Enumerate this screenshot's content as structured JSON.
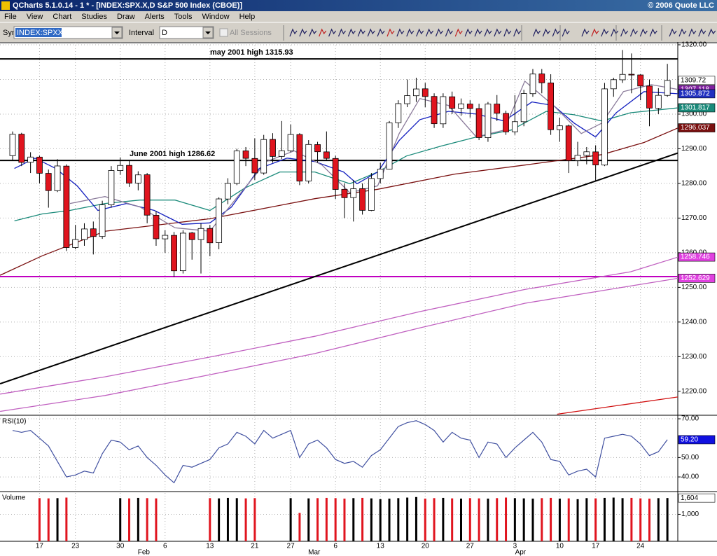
{
  "window": {
    "title": "QCharts 5.1.0.14 - 1 * - [INDEX:SPX.X,D S&P 500 Index (CBOE)]",
    "copyright": "© 2006 Quote LLC"
  },
  "menu": [
    "File",
    "View",
    "Chart",
    "Studies",
    "Draw",
    "Alerts",
    "Tools",
    "Window",
    "Help"
  ],
  "toolbar": {
    "symbol_label": "Symbol",
    "symbol": "INDEX:SPXX",
    "interval_label": "Interval",
    "interval": "D",
    "sessions": "All Sessions"
  },
  "chart_data": [
    {
      "type": "candlestick",
      "up_color": "#ffffff",
      "down_color": "#e0141e",
      "open": [
        1288.0,
        1294.2,
        1286.1,
        1287.6,
        1282.9,
        1277.9,
        1285.0,
        1261.5,
        1263.8,
        1266.9,
        1264.7,
        1273.8,
        1283.7,
        1285.2,
        1280.1,
        1282.5,
        1270.8,
        1264.0,
        1265.0,
        1254.8,
        1265.7,
        1263.8,
        1267.0,
        1262.9,
        1275.5,
        1280.0,
        1289.4,
        1287.2,
        1283.0,
        1292.7,
        1287.8,
        1289.4,
        1294.1,
        1280.7,
        1291.2,
        1289.1,
        1287.2,
        1278.3,
        1275.9,
        1278.5,
        1272.2,
        1281.4,
        1284.1,
        1297.5,
        1303.0,
        1305.3,
        1307.3,
        1305.1,
        1297.2,
        1305.0,
        1301.7,
        1302.9,
        1301.6,
        1293.2,
        1302.9,
        1300.2,
        1294.9,
        1297.8,
        1305.9,
        1311.6,
        1309.0,
        1295.5,
        1296.6,
        1286.6,
        1288.1,
        1289.1,
        1285.3,
        1307.3,
        1309.9,
        1311.5,
        1311.3,
        1308.1,
        1301.7,
        1305.4
      ],
      "high": [
        1295.0,
        1294.6,
        1289.0,
        1288.0,
        1284.0,
        1287.0,
        1285.5,
        1268.0,
        1268.5,
        1269.0,
        1275.0,
        1285.0,
        1287.5,
        1286.5,
        1283.5,
        1283.0,
        1272.0,
        1266.5,
        1266.0,
        1266.5,
        1266.0,
        1268.5,
        1268.0,
        1276.0,
        1281.5,
        1290.0,
        1290.5,
        1293.0,
        1294.0,
        1294.5,
        1298.0,
        1297.0,
        1294.5,
        1292.5,
        1292.0,
        1295.0,
        1288.0,
        1280.0,
        1281.0,
        1280.0,
        1283.0,
        1286.0,
        1298.0,
        1304.0,
        1310.0,
        1310.5,
        1309.0,
        1306.0,
        1306.0,
        1306.5,
        1304.5,
        1304.0,
        1303.0,
        1303.5,
        1305.5,
        1301.0,
        1305.5,
        1307.0,
        1313.0,
        1313.0,
        1311.5,
        1299.0,
        1297.0,
        1292.0,
        1290.5,
        1291.0,
        1309.0,
        1310.5,
        1318.5,
        1317.5,
        1311.5,
        1310.0,
        1307.5,
        1314.5
      ],
      "low": [
        1286.5,
        1285.0,
        1283.0,
        1280.0,
        1273.0,
        1277.5,
        1260.5,
        1261.0,
        1262.0,
        1259.5,
        1264.0,
        1273.0,
        1282.5,
        1279.0,
        1278.0,
        1268.5,
        1262.0,
        1260.0,
        1253.0,
        1254.0,
        1258.0,
        1254.0,
        1259.0,
        1261.0,
        1274.0,
        1279.5,
        1285.0,
        1281.0,
        1282.5,
        1286.0,
        1287.0,
        1289.0,
        1279.5,
        1280.0,
        1286.0,
        1286.5,
        1275.5,
        1270.0,
        1269.0,
        1271.0,
        1272.0,
        1280.0,
        1284.0,
        1296.0,
        1302.0,
        1303.5,
        1302.0,
        1296.0,
        1296.0,
        1300.0,
        1299.5,
        1299.0,
        1292.5,
        1292.0,
        1298.0,
        1294.0,
        1294.0,
        1296.5,
        1305.0,
        1306.0,
        1294.0,
        1292.0,
        1283.0,
        1285.0,
        1285.5,
        1280.5,
        1285.0,
        1305.0,
        1309.0,
        1306.0,
        1304.0,
        1296.5,
        1300.0,
        1305.0
      ],
      "close": [
        1294.18,
        1286.06,
        1287.61,
        1282.93,
        1277.93,
        1285.04,
        1261.49,
        1263.82,
        1266.86,
        1264.68,
        1273.83,
        1283.72,
        1285.19,
        1280.08,
        1282.46,
        1270.84,
        1264.03,
        1265.02,
        1254.78,
        1265.65,
        1263.78,
        1266.99,
        1262.86,
        1275.53,
        1280.0,
        1289.38,
        1287.24,
        1283.03,
        1292.67,
        1287.79,
        1289.43,
        1294.12,
        1280.66,
        1291.24,
        1289.14,
        1287.23,
        1278.26,
        1275.88,
        1278.47,
        1272.23,
        1281.42,
        1284.13,
        1297.48,
        1303.02,
        1305.33,
        1307.25,
        1305.08,
        1297.23,
        1305.04,
        1301.67,
        1302.95,
        1301.61,
        1293.23,
        1302.89,
        1300.25,
        1294.87,
        1297.81,
        1305.93,
        1311.56,
        1309.04,
        1295.5,
        1296.62,
        1286.57,
        1288.12,
        1289.12,
        1285.33,
        1307.28,
        1309.93,
        1311.46,
        1311.28,
        1308.11,
        1301.74,
        1305.41,
        1309.72
      ],
      "lines": [
        {
          "color": "#c060c0",
          "x": [
            -1.4,
            10.3,
            22.0,
            33.7,
            45.4,
            57.1,
            68.9,
            74.2
          ],
          "values": [
            1214.2,
            1218.8,
            1224.8,
            1230.9,
            1238.3,
            1245.4,
            1250.4,
            1252.629
          ]
        },
        {
          "color": "#c060c0",
          "x": [
            -1.4,
            10.3,
            22.0,
            33.7,
            45.4,
            57.1,
            68.9,
            74.2
          ],
          "values": [
            1219.2,
            1224.2,
            1229.9,
            1235.9,
            1243.0,
            1249.4,
            1254.5,
            1258.746
          ]
        },
        {
          "color": "#7a1010",
          "x": [
            -1.4,
            3.3,
            10.3,
            22.0,
            33.7,
            40.7,
            49.3,
            57.1,
            65.7,
            70.4,
            74.2
          ],
          "values": [
            1253.5,
            1259.1,
            1266.2,
            1269.8,
            1275.6,
            1278.3,
            1282.7,
            1285.3,
            1288.3,
            1291.8,
            1296.037
          ]
        },
        {
          "color": "#1a8a7a",
          "x": [
            0.2,
            3.3,
            6.4,
            10.3,
            14.2,
            18.1,
            22.0,
            25.9,
            29.8,
            33.7,
            37.6,
            40.7,
            43.9,
            47.8,
            51.7,
            55.6,
            59.5,
            62.6,
            65.7,
            68.9,
            74.2
          ],
          "values": [
            1269.2,
            1271.2,
            1272.2,
            1274.2,
            1275.2,
            1275.2,
            1272.2,
            1278.7,
            1283.3,
            1283.3,
            1279.9,
            1283.3,
            1287.9,
            1290.8,
            1293.4,
            1295.4,
            1300.8,
            1299.8,
            1298.0,
            1300.4,
            1301.817
          ]
        },
        {
          "color": "#1420c0",
          "x": [
            0.2,
            2.5,
            4.8,
            7.2,
            9.5,
            12.7,
            15.8,
            18.9,
            22.0,
            24.4,
            27.5,
            30.6,
            33.7,
            36.9,
            38.4,
            40.7,
            43.1,
            45.4,
            48.6,
            51.7,
            54.8,
            57.9,
            60.3,
            62.6,
            65.0,
            67.3,
            70.4,
            74.2
          ],
          "values": [
            1284.3,
            1287.3,
            1284.3,
            1279.3,
            1272.2,
            1274.2,
            1272.2,
            1268.2,
            1268.6,
            1273.2,
            1284.3,
            1287.3,
            1286.3,
            1283.3,
            1279.9,
            1283.3,
            1292.4,
            1298.4,
            1300.8,
            1300.0,
            1298.0,
            1303.5,
            1302.5,
            1297.4,
            1293.4,
            1300.4,
            1306.5,
            1305.872
          ]
        },
        {
          "color": "#8a7a9a",
          "x": [
            6.4,
            10.3,
            14.2,
            18.1,
            22.0,
            25.1,
            28.3,
            31.4,
            34.5,
            37.6,
            40.7,
            43.1,
            45.4,
            48.6,
            51.7,
            54.8,
            57.1,
            60.3,
            63.4,
            65.7,
            68.1,
            71.2,
            74.2
          ],
          "values": [
            1274.2,
            1276.2,
            1273.2,
            1267.2,
            1266.2,
            1276.2,
            1286.3,
            1289.4,
            1285.3,
            1277.3,
            1279.3,
            1294.4,
            1304.5,
            1302.5,
            1293.4,
            1295.4,
            1309.5,
            1302.5,
            1294.4,
            1297.4,
            1306.5,
            1308.5,
            1307.118
          ]
        },
        {
          "color": "#000000",
          "x": [
            -1.4,
            74.2
          ],
          "values": [
            1222.2,
            1288.8
          ]
        },
        {
          "color": "#d01010",
          "x": [
            60.7,
            74.2
          ],
          "values": [
            1213.4,
            1218.4
          ]
        }
      ],
      "hlines": [
        {
          "value": 1315.93,
          "color": "#000000",
          "text": "may 2001 high 1315.93"
        },
        {
          "value": 1286.62,
          "color": "#000000",
          "text": "June 2001 high 1286.62"
        },
        {
          "value": 1253.1,
          "color": "#c000c0"
        }
      ],
      "markers": [
        {
          "value": 1309.72,
          "color": "#ffffff",
          "text_color": "#000000"
        },
        {
          "value": 1307.118,
          "color": "#8020a0",
          "text_color": "#ffffff"
        },
        {
          "value": 1305.872,
          "color": "#2030c0",
          "text_color": "#ffffff"
        },
        {
          "value": 1301.817,
          "color": "#1a8a7a",
          "text_color": "#ffffff"
        },
        {
          "value": 1296.037,
          "color": "#7a1010",
          "text_color": "#ffffff"
        },
        {
          "value": 1258.746,
          "color": "#e040e0",
          "text_color": "#ffffff"
        },
        {
          "value": 1252.629,
          "color": "#e040e0",
          "text_color": "#ffffff"
        }
      ],
      "ylim": [
        1213.3,
        1320.6
      ],
      "yticks": [
        {
          "value": 1220,
          "label": "1220.00"
        },
        {
          "value": 1230,
          "label": "1230.00"
        },
        {
          "value": 1240,
          "label": "1240.00"
        },
        {
          "value": 1250,
          "label": "1250.00"
        },
        {
          "value": 1260,
          "label": "1260.00"
        },
        {
          "value": 1270,
          "label": "1270.00"
        },
        {
          "value": 1280,
          "label": "1280.00"
        },
        {
          "value": 1290,
          "label": "1290.00"
        },
        {
          "value": 1300,
          "label": "1300.00"
        },
        {
          "value": 1310,
          "label": "1310.00"
        },
        {
          "value": 1320,
          "label": "1320.00"
        }
      ],
      "grid": true
    },
    {
      "type": "line",
      "label": "RSI(10)",
      "color": "#4050a0",
      "values": [
        64,
        63,
        64,
        60,
        56,
        48,
        40,
        41,
        43,
        42,
        52,
        59,
        58,
        54,
        56,
        50,
        46,
        41,
        37,
        46,
        45,
        47,
        49,
        55,
        57,
        63,
        61,
        57,
        64,
        60,
        62,
        64,
        50,
        57,
        59,
        55,
        49,
        47,
        48,
        45,
        51,
        54,
        60,
        66,
        68,
        69,
        67,
        64,
        58,
        63,
        60,
        59,
        50,
        58,
        57,
        50,
        55,
        59,
        63,
        58,
        49,
        48,
        41,
        43,
        44,
        40,
        60,
        61,
        62,
        61,
        57,
        51,
        53,
        59.2
      ],
      "markers": [
        {
          "value": 59.2,
          "label": "59.20",
          "color": "#1010e0",
          "text_color": "#ffffff"
        }
      ],
      "ylim": [
        32.8,
        71.1
      ],
      "yticks": [
        {
          "value": 40,
          "label": "40.00"
        },
        {
          "value": 50,
          "label": "50.00"
        },
        {
          "value": 70,
          "label": "70.00"
        }
      ],
      "grid": true
    },
    {
      "type": "volume",
      "label": "Volume",
      "up_color": "#000000",
      "down_color": "#e0141e",
      "values": [
        null,
        null,
        null,
        1600,
        1590,
        1600,
        1620,
        null,
        null,
        null,
        null,
        null,
        1600,
        1590,
        1610,
        1600,
        1590,
        null,
        null,
        null,
        null,
        null,
        1600,
        1590,
        1610,
        1600,
        1590,
        1600,
        null,
        null,
        null,
        1600,
        1050,
        1590,
        1600,
        1610,
        1600,
        1580,
        1600,
        1610,
        1590,
        1560,
        1580,
        1600,
        1620,
        1640,
        1580,
        1600,
        1610,
        1590,
        1580,
        1600,
        1590,
        1580,
        1600,
        1620,
        1600,
        1590,
        1580,
        1600,
        1610,
        1580,
        1590,
        1560,
        1600,
        1590,
        1610,
        1620,
        1600,
        1610,
        1590,
        1580,
        1600,
        1604
      ],
      "markers": [
        {
          "value": 1604,
          "label": "1,604",
          "color": "#ffffff",
          "text_color": "#000000"
        }
      ],
      "ylim": [
        0,
        1790
      ],
      "yticks": [
        {
          "value": 1000,
          "label": "1,000"
        }
      ],
      "grid": true,
      "categories": [
        null,
        null,
        null,
        "17",
        null,
        null,
        null,
        "23",
        null,
        null,
        null,
        null,
        "30",
        null,
        null,
        null,
        null,
        "6",
        null,
        null,
        null,
        null,
        "13",
        null,
        null,
        null,
        null,
        "21",
        null,
        null,
        null,
        "27",
        null,
        null,
        null,
        null,
        "6",
        null,
        null,
        null,
        null,
        "13",
        null,
        null,
        null,
        null,
        "20",
        null,
        null,
        null,
        null,
        "27",
        null,
        null,
        null,
        null,
        "3",
        null,
        null,
        null,
        null,
        "10",
        null,
        null,
        null,
        "17",
        null,
        null,
        null,
        null,
        "24",
        null,
        null,
        null
      ],
      "months": [
        null,
        null,
        null,
        null,
        null,
        null,
        null,
        null,
        null,
        null,
        null,
        null,
        null,
        null,
        "Feb",
        null,
        null,
        null,
        null,
        null,
        null,
        null,
        null,
        null,
        null,
        null,
        null,
        null,
        null,
        null,
        null,
        null,
        null,
        "Mar",
        null,
        null,
        null,
        null,
        null,
        null,
        null,
        null,
        null,
        null,
        null,
        null,
        null,
        null,
        null,
        null,
        null,
        null,
        null,
        null,
        null,
        null,
        "Apr",
        null,
        null,
        null,
        null,
        null,
        null,
        null,
        null,
        null,
        null,
        null,
        null,
        null,
        null,
        null,
        null,
        null
      ]
    }
  ]
}
